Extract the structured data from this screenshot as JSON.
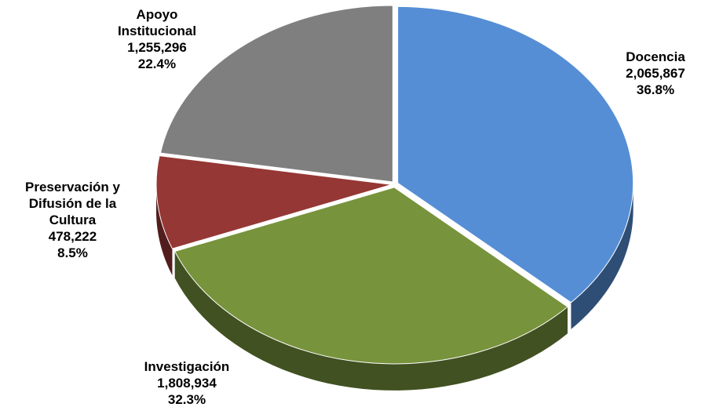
{
  "chart_data": {
    "type": "pie3d",
    "categories": [
      "Docencia",
      "Investigación",
      "Preservación y Difusión de la Cultura",
      "Apoyo Institucional"
    ],
    "values": [
      2065867,
      1808934,
      478222,
      1255296
    ],
    "value_labels": [
      "2,065,867",
      "1,808,934",
      "478,222",
      "1,255,296"
    ],
    "percents": [
      36.8,
      32.3,
      8.5,
      22.4
    ],
    "percent_labels": [
      "36.8%",
      "32.3%",
      "8.5%",
      "22.4%"
    ],
    "colors": [
      "#558ed5",
      "#77933c",
      "#953735",
      "#7f7f7f"
    ]
  }
}
